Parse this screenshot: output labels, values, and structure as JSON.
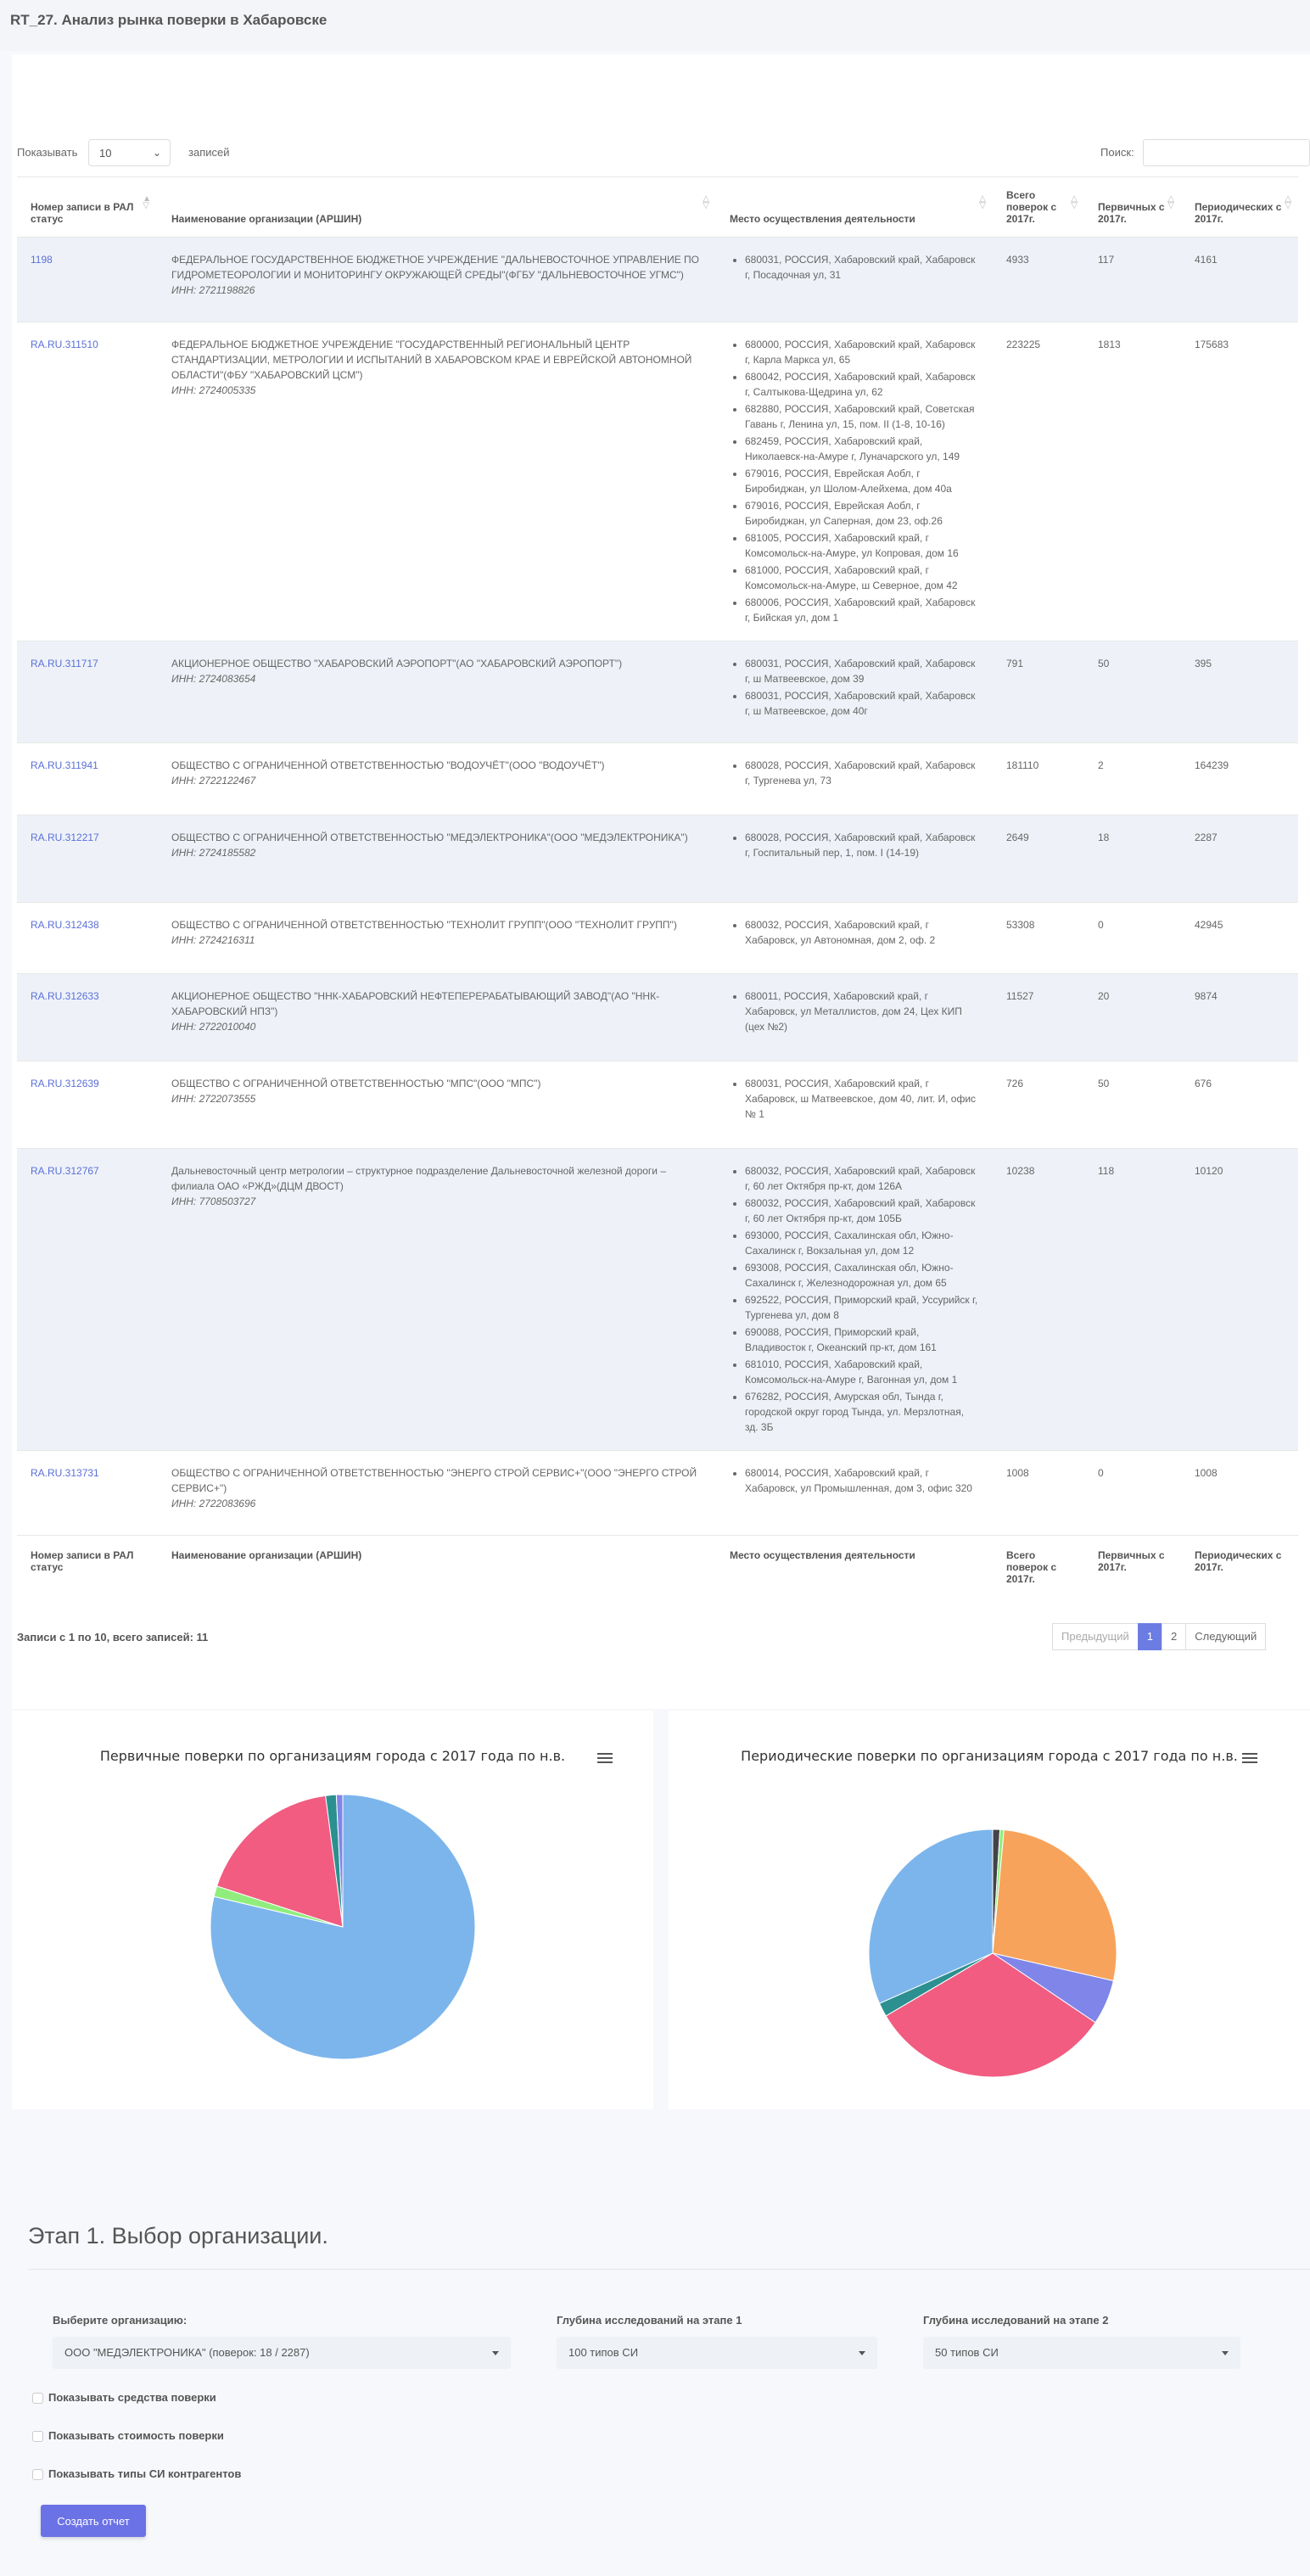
{
  "page_title": "RT_27. Анализ рынка поверки в Хабаровске",
  "controls": {
    "show_label": "Показывать",
    "show_value": "10",
    "show_suffix": "записей",
    "search_label": "Поиск:"
  },
  "table": {
    "headers": {
      "rap": "Номер записи в РАЛ статус",
      "org": "Наименование организации (АРШИН)",
      "place": "Место осуществления деятельности",
      "total": "Всего поверок с 2017г.",
      "primary": "Первичных с 2017г.",
      "periodic": "Периодических с 2017г."
    },
    "rows": [
      {
        "rap": "1198",
        "name": "ФЕДЕРАЛЬНОЕ ГОСУДАРСТВЕННОЕ БЮДЖЕТНОЕ УЧРЕЖДЕНИЕ \"ДАЛЬНЕВОСТОЧНОЕ УПРАВЛЕНИЕ ПО ГИДРОМЕТЕОРОЛОГИИ И МОНИТОРИНГУ ОКРУЖАЮЩЕЙ СРЕДЫ\"(ФГБУ \"ДАЛЬНЕВОСТОЧНОЕ УГМС\")",
        "inn": "ИНН: 2721198826",
        "places": [
          "680031, РОССИЯ, Хабаровский край, Хабаровск г, Посадочная ул, 31"
        ],
        "total": "4933",
        "primary": "117",
        "periodic": "4161"
      },
      {
        "rap": "RA.RU.311510",
        "name": "ФЕДЕРАЛЬНОЕ БЮДЖЕТНОЕ УЧРЕЖДЕНИЕ \"ГОСУДАРСТВЕННЫЙ РЕГИОНАЛЬНЫЙ ЦЕНТР СТАНДАРТИЗАЦИИ, МЕТРОЛОГИИ И ИСПЫТАНИЙ В ХАБАРОВСКОМ КРАЕ И ЕВРЕЙСКОЙ АВТОНОМНОЙ ОБЛАСТИ\"(ФБУ \"ХАБАРОВСКИЙ ЦСМ\")",
        "inn": "ИНН: 2724005335",
        "places": [
          "680000, РОССИЯ, Хабаровский край, Хабаровск г, Карла Маркса ул, 65",
          "680042, РОССИЯ, Хабаровский край, Хабаровск г, Салтыкова-Щедрина ул, 62",
          "682880, РОССИЯ, Хабаровский край, Советская Гавань г, Ленина ул, 15, пом. II (1-8, 10-16)",
          "682459, РОССИЯ, Хабаровский край, Николаевск-на-Амуре г, Луначарского ул, 149",
          "679016, РОССИЯ, Еврейская Аобл, г Биробиджан, ул Шолом-Алейхема, дом 40а",
          "679016, РОССИЯ, Еврейская Аобл, г Биробиджан, ул Саперная, дом 23, оф.26",
          "681005, РОССИЯ, Хабаровский край, г Комсомольск-на-Амуре, ул Копровая, дом 16",
          "681000, РОССИЯ, Хабаровский край, г Комсомольск-на-Амуре, ш Северное, дом 42",
          "680006, РОССИЯ, Хабаровский край, Хабаровск г, Бийская ул, дом 1"
        ],
        "total": "223225",
        "primary": "1813",
        "periodic": "175683"
      },
      {
        "rap": "RA.RU.311717",
        "name": "АКЦИОНЕРНОЕ ОБЩЕСТВО \"ХАБАРОВСКИЙ АЭРОПОРТ\"(АО \"ХАБАРОВСКИЙ АЭРОПОРТ\")",
        "inn": "ИНН: 2724083654",
        "places": [
          "680031, РОССИЯ, Хабаровский край, Хабаровск г, ш Матвеевское, дом 39",
          "680031, РОССИЯ, Хабаровский край, Хабаровск г, ш Матвеевское, дом 40г"
        ],
        "total": "791",
        "primary": "50",
        "periodic": "395"
      },
      {
        "rap": "RA.RU.311941",
        "name": "ОБЩЕСТВО С ОГРАНИЧЕННОЙ ОТВЕТСТВЕННОСТЬЮ \"ВОДОУЧЁТ\"(ООО \"ВОДОУЧЁТ\")",
        "inn": "ИНН: 2722122467",
        "places": [
          "680028, РОССИЯ, Хабаровский край, Хабаровск г, Тургенева ул, 73"
        ],
        "total": "181110",
        "primary": "2",
        "periodic": "164239"
      },
      {
        "rap": "RA.RU.312217",
        "name": "ОБЩЕСТВО С ОГРАНИЧЕННОЙ ОТВЕТСТВЕННОСТЬЮ \"МЕДЭЛЕКТРОНИКА\"(ООО \"МЕДЭЛЕКТРОНИКА\")",
        "inn": "ИНН: 2724185582",
        "places": [
          "680028, РОССИЯ, Хабаровский край, Хабаровск г, Госпитальный пер, 1, пом. I (14-19)"
        ],
        "total": "2649",
        "primary": "18",
        "periodic": "2287"
      },
      {
        "rap": "RA.RU.312438",
        "name": "ОБЩЕСТВО С ОГРАНИЧЕННОЙ ОТВЕТСТВЕННОСТЬЮ \"ТЕХНОЛИТ ГРУПП\"(ООО \"ТЕХНОЛИТ ГРУПП\")",
        "inn": "ИНН: 2724216311",
        "places": [
          "680032, РОССИЯ, Хабаровский край, г Хабаровск, ул Автономная, дом 2, оф. 2"
        ],
        "total": "53308",
        "primary": "0",
        "periodic": "42945"
      },
      {
        "rap": "RA.RU.312633",
        "name": "АКЦИОНЕРНОЕ ОБЩЕСТВО \"ННК-ХАБАРОВСКИЙ НЕФТЕПЕРЕРАБАТЫВАЮЩИЙ ЗАВОД\"(АО \"ННК-ХАБАРОВСКИЙ НПЗ\")",
        "inn": "ИНН: 2722010040",
        "places": [
          "680011, РОССИЯ, Хабаровский край, г Хабаровск, ул Металлистов, дом 24, Цех КИП (цех №2)"
        ],
        "total": "11527",
        "primary": "20",
        "periodic": "9874"
      },
      {
        "rap": "RA.RU.312639",
        "name": "ОБЩЕСТВО С ОГРАНИЧЕННОЙ ОТВЕТСТВЕННОСТЬЮ \"МПС\"(ООО \"МПС\")",
        "inn": "ИНН: 2722073555",
        "places": [
          "680031, РОССИЯ, Хабаровский край, г Хабаровск, ш Матвеевское, дом 40, лит. И, офис № 1"
        ],
        "total": "726",
        "primary": "50",
        "periodic": "676"
      },
      {
        "rap": "RA.RU.312767",
        "name": "Дальневосточный центр метрологии – структурное подразделение Дальневосточной железной дороги – филиала ОАО «РЖД»(ДЦМ ДВОСТ)",
        "inn": "ИНН: 7708503727",
        "places": [
          "680032, РОССИЯ, Хабаровский край, Хабаровск г, 60 лет Октября пр-кт, дом 126А",
          "680032, РОССИЯ, Хабаровский край, Хабаровск г, 60 лет Октября пр-кт, дом 105Б",
          "693000, РОССИЯ, Сахалинская обл, Южно-Сахалинск г, Вокзальная ул, дом 12",
          "693008, РОССИЯ, Сахалинская обл, Южно-Сахалинск г, Железнодорожная ул, дом 65",
          "692522, РОССИЯ, Приморский край, Уссурийск г, Тургенева ул, дом 8",
          "690088, РОССИЯ, Приморский край, Владивосток г, Океанский пр-кт, дом 161",
          "681010, РОССИЯ, Хабаровский край, Комсомольск-на-Амуре г, Вагонная ул, дом 1",
          "676282, РОССИЯ, Амурская обл, Тында г, городской округ город Тында, ул. Мерзлотная, зд. 3Б"
        ],
        "total": "10238",
        "primary": "118",
        "periodic": "10120"
      },
      {
        "rap": "RA.RU.313731",
        "name": "ОБЩЕСТВО С ОГРАНИЧЕННОЙ ОТВЕТСТВЕННОСТЬЮ \"ЭНЕРГО СТРОЙ СЕРВИС+\"(ООО \"ЭНЕРГО СТРОЙ СЕРВИС+\")",
        "inn": "ИНН: 2722083696",
        "places": [
          "680014, РОССИЯ, Хабаровский край, г Хабаровск, ул Промышленная, дом 3, офис 320"
        ],
        "total": "1008",
        "primary": "0",
        "periodic": "1008"
      }
    ]
  },
  "info_text": "Записи с 1 по 10, всего записей: 11",
  "pager": {
    "prev": "Предыдущий",
    "page1": "1",
    "page2": "2",
    "next": "Следующий"
  },
  "chart_data": [
    {
      "type": "pie",
      "title": "Первичные поверки по организациям города с 2017 года по н.в.",
      "slices": [
        {
          "value": 1813,
          "color": "#7cb5ec"
        },
        {
          "value": 30,
          "color": "#90ed7d"
        },
        {
          "value": 413,
          "color": "#f15c80"
        },
        {
          "value": 30,
          "color": "#2b908f"
        },
        {
          "value": 18,
          "color": "#8085e9"
        }
      ],
      "colors": {
        "accent": "#7cb5ec"
      }
    },
    {
      "type": "pie",
      "title": "Периодические поверки по организациям города с 2017 года по н.в.",
      "slices": [
        {
          "value": 4161,
          "color": "#434348"
        },
        {
          "value": 2287,
          "color": "#90ed7d"
        },
        {
          "value": 120000,
          "color": "#f7a35c"
        },
        {
          "value": 26000,
          "color": "#8085e9"
        },
        {
          "value": 142000,
          "color": "#f15c80"
        },
        {
          "value": 8000,
          "color": "#2b908f"
        },
        {
          "value": 140000,
          "color": "#7cb5ec"
        }
      ]
    }
  ],
  "stage": {
    "title": "Этап 1. Выбор организации.",
    "org_label": "Выберите организацию:",
    "org_value": "ООО \"МЕДЭЛЕКТРОНИКА\" (поверок: 18 / 2287)",
    "depth1_label": "Глубина исследований на этапе 1",
    "depth1_value": "100 типов СИ",
    "depth2_label": "Глубина исследований на этапе 2",
    "depth2_value": "50 типов СИ",
    "check1": "Показывать средства поверки",
    "check2": "Показывать стоимость поверки",
    "check3": "Показывать типы СИ контрагентов",
    "button": "Создать отчет"
  }
}
